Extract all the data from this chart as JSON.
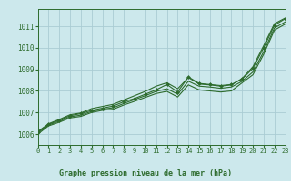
{
  "background_color": "#cce8ec",
  "grid_color": "#aaccd4",
  "line_color": "#2d6b2d",
  "marker_color": "#2d6b2d",
  "title": "Graphe pression niveau de la mer (hPa)",
  "xlim": [
    0,
    23
  ],
  "ylim": [
    1005.5,
    1011.8
  ],
  "yticks": [
    1006,
    1007,
    1008,
    1009,
    1010,
    1011
  ],
  "xticks": [
    0,
    1,
    2,
    3,
    4,
    5,
    6,
    7,
    8,
    9,
    10,
    11,
    12,
    13,
    14,
    15,
    16,
    17,
    18,
    19,
    20,
    21,
    22,
    23
  ],
  "series": [
    [
      1006.1,
      1006.45,
      1006.65,
      1006.85,
      1006.95,
      1007.1,
      1007.2,
      1007.3,
      1007.5,
      1007.65,
      1007.85,
      1008.05,
      1008.3,
      1007.95,
      1008.65,
      1008.35,
      1008.3,
      1008.25,
      1008.3,
      1008.55,
      1009.05,
      1010.0,
      1011.05,
      1011.35
    ],
    [
      1006.05,
      1006.42,
      1006.6,
      1006.8,
      1006.88,
      1007.05,
      1007.15,
      1007.22,
      1007.42,
      1007.6,
      1007.78,
      1007.98,
      1008.1,
      1007.85,
      1008.45,
      1008.22,
      1008.18,
      1008.12,
      1008.18,
      1008.45,
      1008.88,
      1009.82,
      1010.92,
      1011.2
    ],
    [
      1006.0,
      1006.38,
      1006.55,
      1006.75,
      1006.82,
      1007.0,
      1007.1,
      1007.15,
      1007.35,
      1007.52,
      1007.7,
      1007.88,
      1007.98,
      1007.72,
      1008.28,
      1008.05,
      1008.0,
      1007.95,
      1008.0,
      1008.38,
      1008.75,
      1009.7,
      1010.82,
      1011.1
    ],
    [
      1006.12,
      1006.48,
      1006.68,
      1006.9,
      1006.98,
      1007.18,
      1007.28,
      1007.38,
      1007.58,
      1007.78,
      1007.98,
      1008.22,
      1008.38,
      1008.1,
      1008.62,
      1008.32,
      1008.28,
      1008.22,
      1008.28,
      1008.58,
      1009.12,
      1010.1,
      1011.12,
      1011.38
    ]
  ]
}
